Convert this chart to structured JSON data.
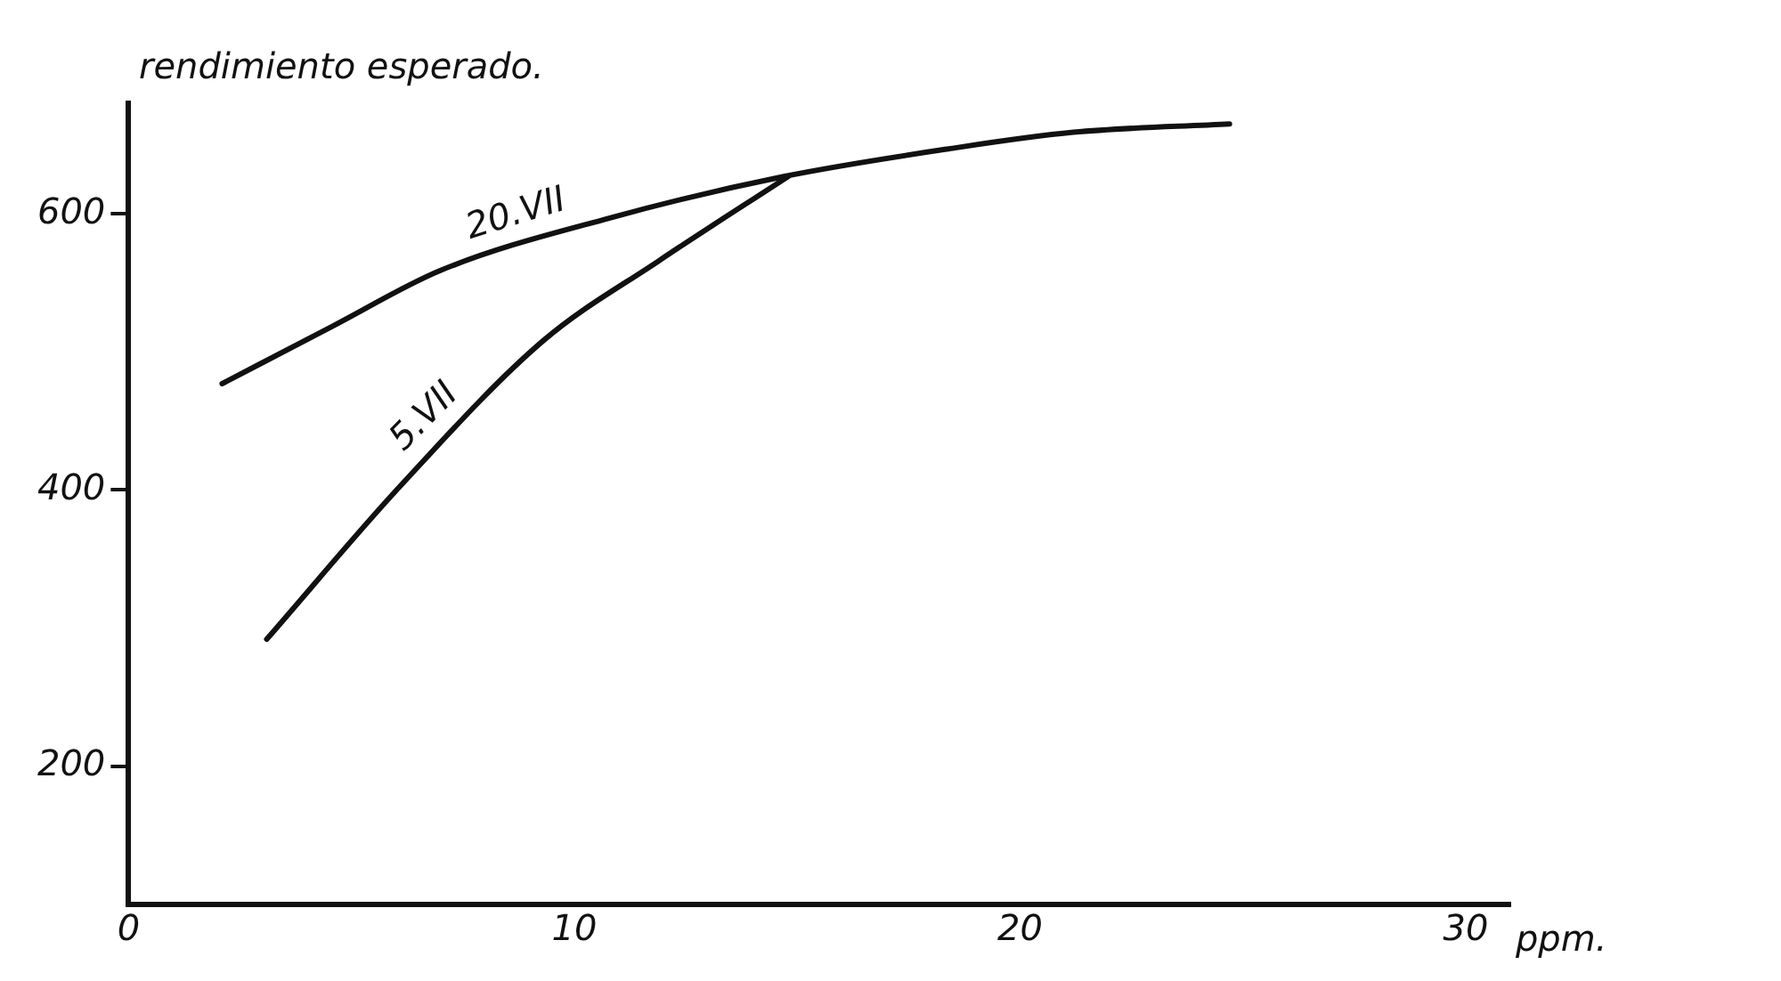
{
  "chart_data": {
    "type": "line",
    "ylabel": "rendimiento esperado.",
    "xlabel": "ppm.",
    "xlim": [
      0,
      31
    ],
    "xticks": [
      0,
      10,
      20,
      30
    ],
    "ylim": [
      100,
      680
    ],
    "yticks": [
      200,
      400,
      600
    ],
    "grid": false,
    "legend": false,
    "marker": "none",
    "line_style": "solid",
    "series": [
      {
        "name": "20.VII",
        "color": "#111111",
        "x": [
          2.1,
          4.6,
          7.0,
          10.8,
          14.7,
          18.4,
          21.2,
          24.7
        ],
        "values": [
          477,
          519,
          559,
          597,
          627,
          647,
          659,
          665
        ]
      },
      {
        "name": "5.VII",
        "color": "#111111",
        "x": [
          3.1,
          6.1,
          9.3,
          11.9,
          14.8
        ],
        "values": [
          292,
          403,
          508,
          566,
          627
        ]
      }
    ]
  }
}
